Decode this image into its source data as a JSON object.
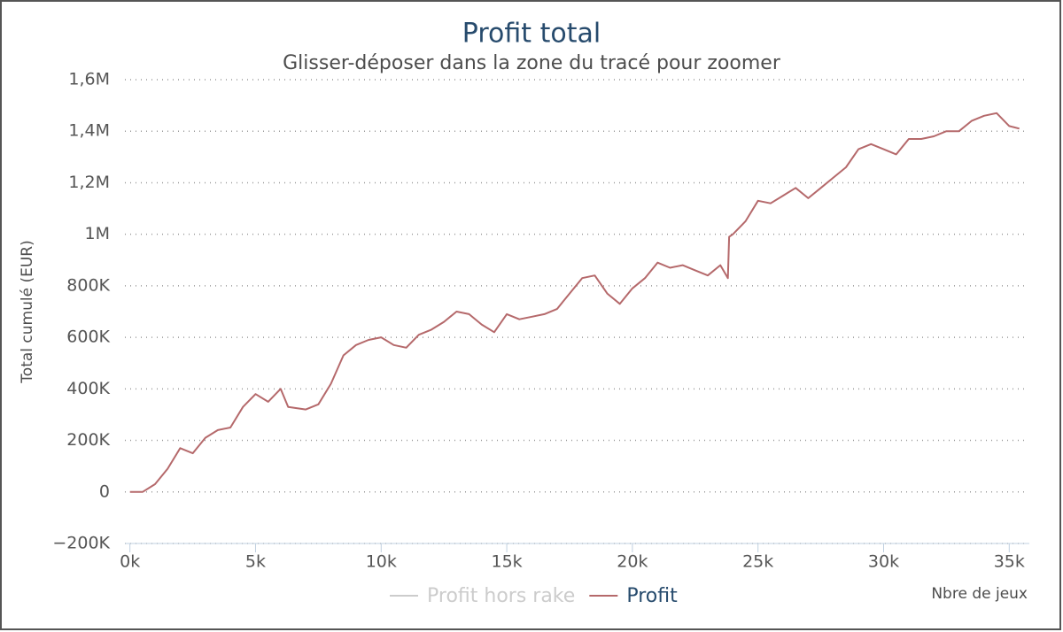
{
  "chart_data": {
    "type": "line",
    "title": "Profit total",
    "subtitle": "Glisser-déposer dans la zone du tracé pour zoomer",
    "y_label": "Total cumulé (EUR)",
    "x_label": "Nbre de jeux",
    "x": [
      0,
      500,
      1000,
      1500,
      2000,
      2500,
      3000,
      3500,
      4000,
      4500,
      5000,
      5500,
      6000,
      6300,
      7000,
      7500,
      8000,
      8500,
      9000,
      9500,
      10000,
      10500,
      11000,
      11500,
      12000,
      12500,
      13000,
      13500,
      14000,
      14500,
      15000,
      15500,
      16000,
      16500,
      17000,
      17500,
      18000,
      18500,
      19000,
      19500,
      20000,
      20500,
      21000,
      21500,
      22000,
      22500,
      23000,
      23500,
      23800,
      23850,
      24000,
      24500,
      25000,
      25500,
      26000,
      26500,
      27000,
      27500,
      28000,
      28500,
      29000,
      29500,
      30000,
      30500,
      31000,
      31500,
      32000,
      32500,
      33000,
      33500,
      34000,
      34500,
      35000,
      35400
    ],
    "series": [
      {
        "name": "Profit hors rake",
        "color": "#cccccc",
        "visible": false
      },
      {
        "name": "Profit",
        "color": "#b5696b",
        "visible": true,
        "values": [
          0,
          0,
          30000,
          90000,
          170000,
          150000,
          210000,
          240000,
          250000,
          330000,
          380000,
          350000,
          400000,
          330000,
          320000,
          340000,
          420000,
          530000,
          570000,
          590000,
          600000,
          570000,
          560000,
          610000,
          630000,
          660000,
          700000,
          690000,
          650000,
          620000,
          690000,
          670000,
          680000,
          690000,
          710000,
          770000,
          830000,
          840000,
          770000,
          730000,
          790000,
          830000,
          890000,
          870000,
          880000,
          860000,
          840000,
          880000,
          830000,
          990000,
          1000000,
          1050000,
          1130000,
          1120000,
          1150000,
          1180000,
          1140000,
          1180000,
          1220000,
          1260000,
          1330000,
          1350000,
          1330000,
          1310000,
          1370000,
          1370000,
          1380000,
          1400000,
          1400000,
          1440000,
          1460000,
          1470000,
          1420000,
          1410000
        ]
      }
    ],
    "xlim": [
      -200,
      35800
    ],
    "ylim": [
      -200000,
      1600000
    ],
    "xticks": [
      {
        "value": 0,
        "label": "0k"
      },
      {
        "value": 5000,
        "label": "5k"
      },
      {
        "value": 10000,
        "label": "10k"
      },
      {
        "value": 15000,
        "label": "15k"
      },
      {
        "value": 20000,
        "label": "20k"
      },
      {
        "value": 25000,
        "label": "25k"
      },
      {
        "value": 30000,
        "label": "30k"
      },
      {
        "value": 35000,
        "label": "35k"
      }
    ],
    "yticks": [
      {
        "value": -200000,
        "label": "−200K"
      },
      0,
      {
        "value": 200000,
        "label": "200K"
      },
      {
        "value": 400000,
        "label": "400K"
      },
      {
        "value": 600000,
        "label": "600K"
      },
      {
        "value": 800000,
        "label": "800K"
      },
      {
        "value": 1000000,
        "label": "1M"
      },
      {
        "value": 1200000,
        "label": "1,2M"
      },
      {
        "value": 1400000,
        "label": "1,4M"
      },
      {
        "value": 1600000,
        "label": "1,6M"
      }
    ],
    "grid": true
  }
}
